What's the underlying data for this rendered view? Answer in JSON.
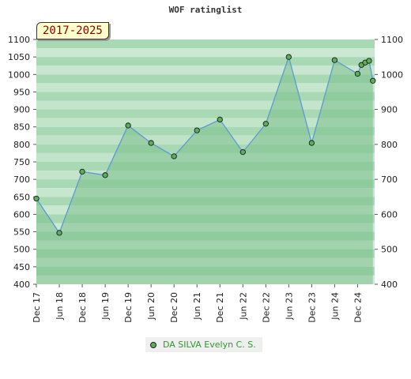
{
  "title": "WOF ratinglist",
  "range_label": "2017-2025",
  "legend": {
    "label": "DA SILVA Evelyn C. S."
  },
  "colors": {
    "line": "#5b9bd5",
    "area": "#7cc08c",
    "marker": "#5cae5c",
    "band_dark": "#a9d9b4",
    "band_light": "#e9f6ec",
    "legend_text": "#2e9a2e"
  },
  "chart_data": {
    "type": "area",
    "title": "WOF ratinglist",
    "xlabel": "",
    "ylabel": "",
    "ylim": [
      400,
      1100
    ],
    "yticks": [
      400,
      450,
      500,
      550,
      600,
      650,
      700,
      750,
      800,
      850,
      900,
      950,
      1000,
      1050,
      1100
    ],
    "right_yticks": [
      400,
      500,
      600,
      700,
      800,
      900,
      1000,
      1100
    ],
    "x_ticklabels": [
      "Dec 17",
      "Jun 18",
      "Dec 18",
      "Jun 19",
      "Dec 19",
      "Jun 20",
      "Dec 20",
      "Jun 21",
      "Dec 21",
      "Jun 22",
      "Dec 22",
      "Jun 23",
      "Dec 23",
      "Jun 24",
      "Dec 24"
    ],
    "grid": true,
    "legend_position": "bottom",
    "series": [
      {
        "name": "DA SILVA Evelyn C. S.",
        "x": [
          "2017-12",
          "2018-06",
          "2018-12",
          "2019-06",
          "2019-12",
          "2020-06",
          "2020-12",
          "2021-06",
          "2021-12",
          "2022-06",
          "2022-12",
          "2023-06",
          "2023-12",
          "2024-06",
          "2024-12",
          "2025-01",
          "2025-02",
          "2025-03",
          "2025-04"
        ],
        "values": [
          645,
          547,
          722,
          712,
          854,
          804,
          766,
          840,
          871,
          778,
          859,
          1050,
          804,
          1041,
          1002,
          1027,
          1034,
          1039,
          982
        ]
      }
    ]
  }
}
